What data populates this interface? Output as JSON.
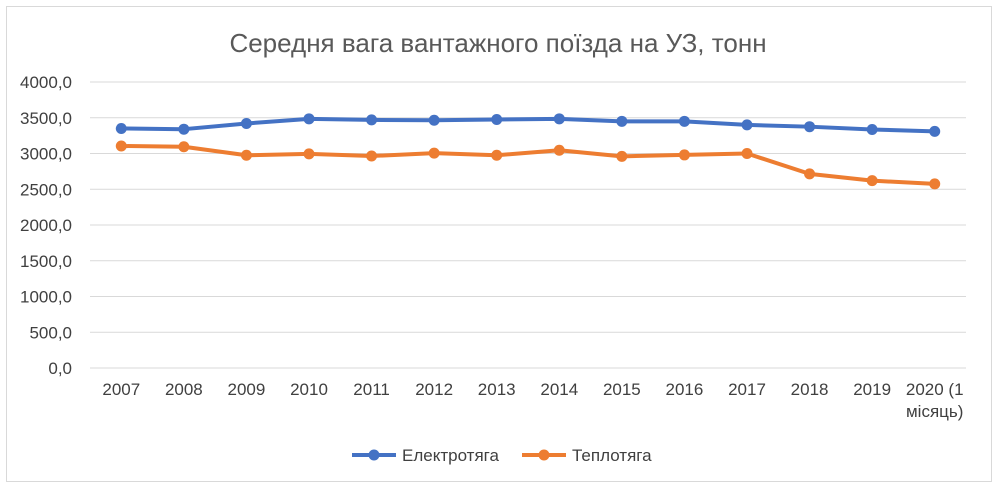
{
  "chart_data": {
    "type": "line",
    "title": "Середня вага вантажного поїзда на УЗ, тонн",
    "xlabel": "",
    "ylabel": "",
    "categories": [
      "2007",
      "2008",
      "2009",
      "2010",
      "2011",
      "2012",
      "2013",
      "2014",
      "2015",
      "2016",
      "2017",
      "2018",
      "2019",
      "2020 (1 місяць)"
    ],
    "category_lines": [
      [
        "2007"
      ],
      [
        "2008"
      ],
      [
        "2009"
      ],
      [
        "2010"
      ],
      [
        "2011"
      ],
      [
        "2012"
      ],
      [
        "2013"
      ],
      [
        "2014"
      ],
      [
        "2015"
      ],
      [
        "2016"
      ],
      [
        "2017"
      ],
      [
        "2018"
      ],
      [
        "2019"
      ],
      [
        "2020 (1",
        "місяць)"
      ]
    ],
    "ylim": [
      0,
      4000
    ],
    "yticks": [
      0,
      500,
      1000,
      1500,
      2000,
      2500,
      3000,
      3500,
      4000
    ],
    "ytick_labels": [
      "0,0",
      "500,0",
      "1000,0",
      "1500,0",
      "2000,0",
      "2500,0",
      "3000,0",
      "3500,0",
      "4000,0"
    ],
    "grid": true,
    "legend_position": "bottom",
    "series": [
      {
        "name": "Електротяга",
        "color": "#4472c4",
        "values": [
          3350,
          3340,
          3420,
          3485,
          3470,
          3465,
          3475,
          3485,
          3450,
          3450,
          3400,
          3375,
          3335,
          3310
        ]
      },
      {
        "name": "Теплотяга",
        "color": "#ed7d31",
        "values": [
          3105,
          3095,
          2975,
          2995,
          2965,
          3005,
          2975,
          3045,
          2960,
          2980,
          3000,
          2715,
          2620,
          2575
        ]
      }
    ]
  }
}
